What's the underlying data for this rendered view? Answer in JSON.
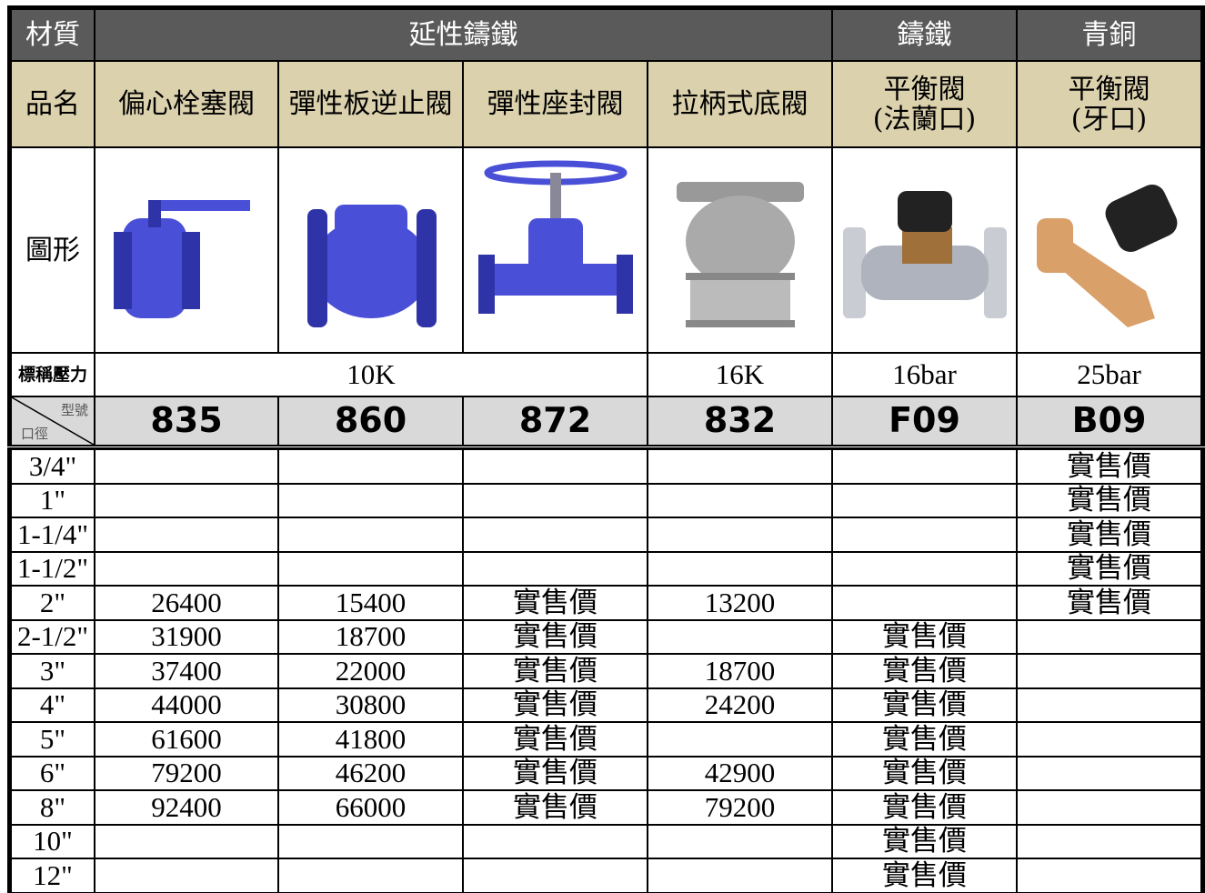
{
  "material": {
    "label": "材質",
    "groups": [
      "延性鑄鐵",
      "鑄鐵",
      "青銅"
    ]
  },
  "product": {
    "label": "品名",
    "names": [
      [
        "偏心栓塞閥"
      ],
      [
        "彈性板逆止閥"
      ],
      [
        "彈性座封閥"
      ],
      [
        "拉柄式底閥"
      ],
      [
        "平衡閥",
        "(法蘭口)"
      ],
      [
        "平衡閥",
        "(牙口)"
      ]
    ]
  },
  "figure": {
    "label": "圖形"
  },
  "pressure": {
    "label": "標稱壓力",
    "values": [
      "10K",
      "16K",
      "16bar",
      "25bar"
    ]
  },
  "model": {
    "label_model": "型號",
    "label_size": "口徑",
    "codes": [
      "835",
      "860",
      "872",
      "832",
      "F09",
      "B09"
    ]
  },
  "rows": [
    {
      "size": "3/4\"",
      "cells": [
        null,
        null,
        null,
        null,
        null,
        "實售價"
      ]
    },
    {
      "size": "1\"",
      "cells": [
        null,
        null,
        null,
        null,
        null,
        "實售價"
      ]
    },
    {
      "size": "1-1/4\"",
      "cells": [
        null,
        null,
        null,
        null,
        null,
        "實售價"
      ]
    },
    {
      "size": "1-1/2\"",
      "cells": [
        null,
        null,
        null,
        null,
        null,
        "實售價"
      ]
    },
    {
      "size": "2\"",
      "cells": [
        26400,
        15400,
        "實售價",
        13200,
        null,
        "實售價"
      ]
    },
    {
      "size": "2-1/2\"",
      "cells": [
        31900,
        18700,
        "實售價",
        null,
        "實售價",
        null
      ]
    },
    {
      "size": "3\"",
      "cells": [
        37400,
        22000,
        "實售價",
        18700,
        "實售價",
        null
      ]
    },
    {
      "size": "4\"",
      "cells": [
        44000,
        30800,
        "實售價",
        24200,
        "實售價",
        null
      ]
    },
    {
      "size": "5\"",
      "cells": [
        61600,
        41800,
        "實售價",
        null,
        "實售價",
        null
      ]
    },
    {
      "size": "6\"",
      "cells": [
        79200,
        46200,
        "實售價",
        42900,
        "實售價",
        null
      ]
    },
    {
      "size": "8\"",
      "cells": [
        92400,
        66000,
        "實售價",
        79200,
        "實售價",
        null
      ]
    },
    {
      "size": "10\"",
      "cells": [
        null,
        null,
        null,
        null,
        "實售價",
        null
      ]
    },
    {
      "size": "12\"",
      "cells": [
        null,
        null,
        null,
        null,
        "實售價",
        null
      ]
    }
  ]
}
